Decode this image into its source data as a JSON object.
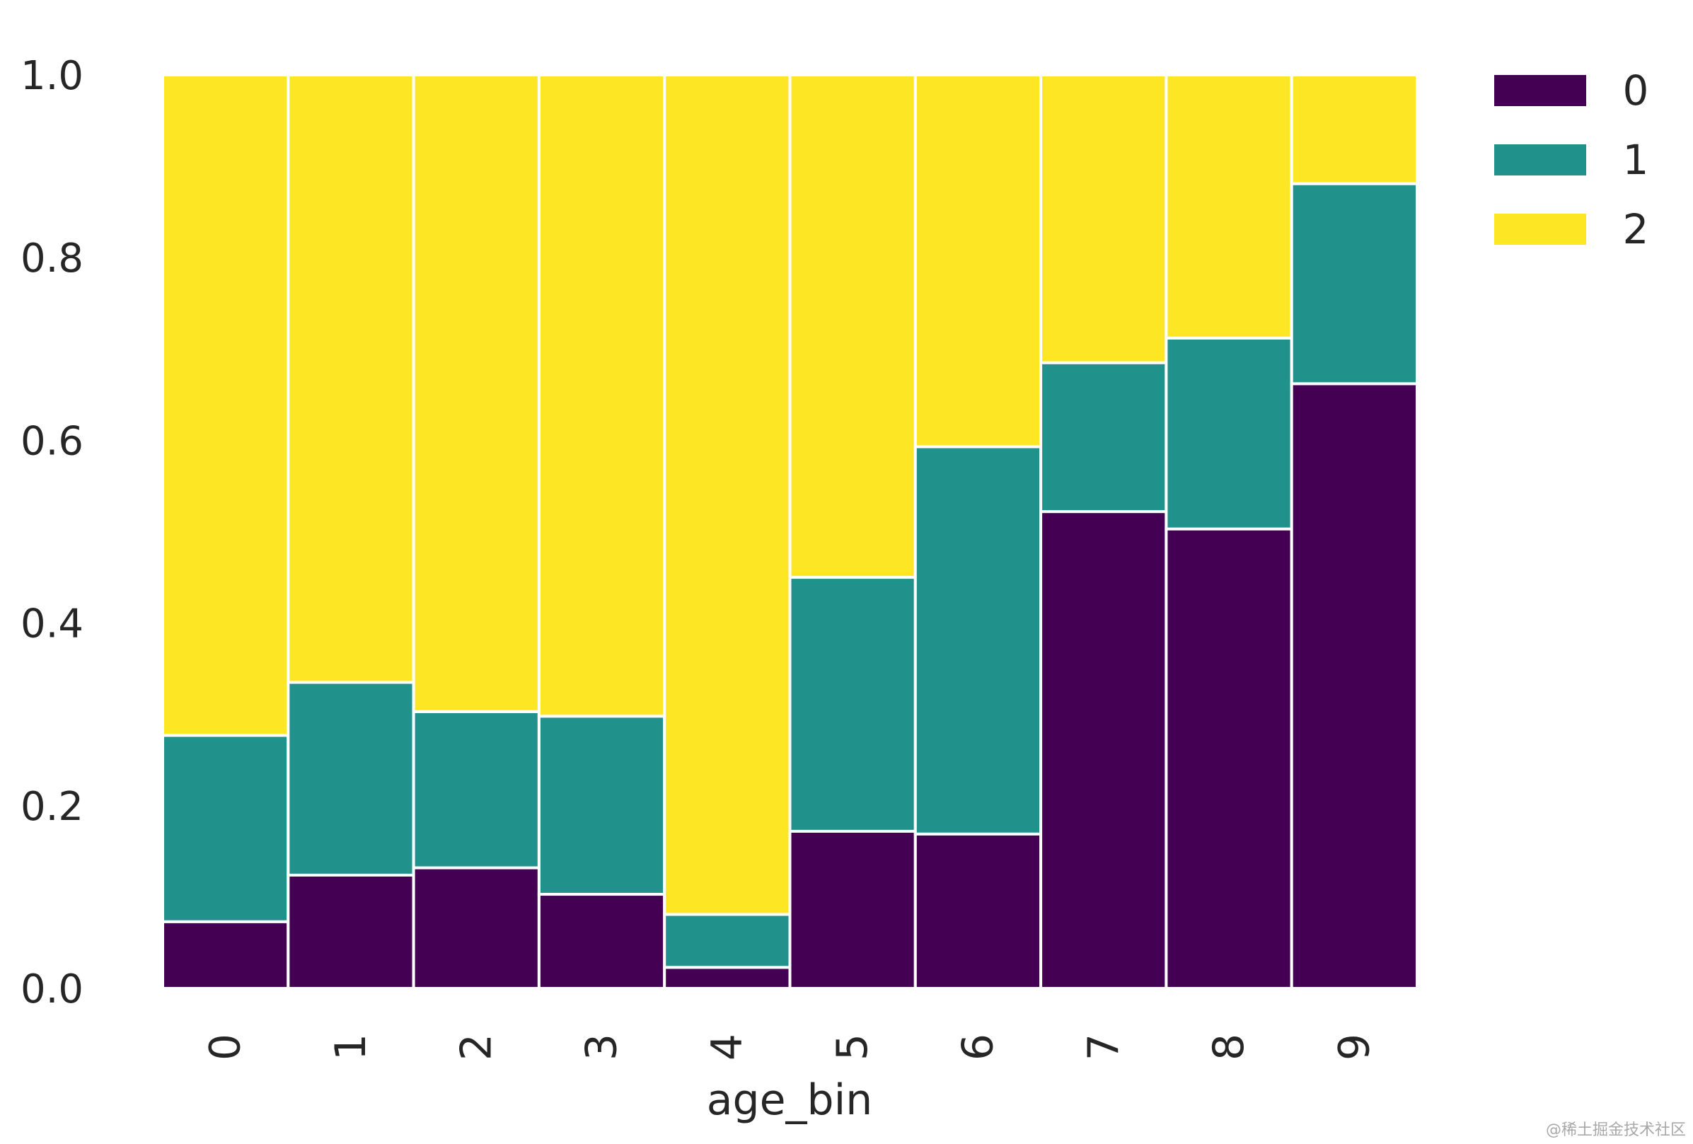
{
  "chart_data": {
    "type": "bar",
    "stacked": true,
    "normalized": true,
    "categories": [
      "0",
      "1",
      "2",
      "3",
      "4",
      "5",
      "6",
      "7",
      "8",
      "9"
    ],
    "series": [
      {
        "name": "0",
        "color": "#440154",
        "values": [
          0.073,
          0.124,
          0.132,
          0.103,
          0.023,
          0.172,
          0.169,
          0.522,
          0.503,
          0.662
        ]
      },
      {
        "name": "1",
        "color": "#21918c",
        "values": [
          0.204,
          0.211,
          0.171,
          0.195,
          0.058,
          0.278,
          0.424,
          0.163,
          0.209,
          0.219
        ]
      },
      {
        "name": "2",
        "color": "#fde725",
        "values": [
          0.723,
          0.665,
          0.697,
          0.702,
          0.919,
          0.55,
          0.407,
          0.315,
          0.288,
          0.119
        ]
      }
    ],
    "yticks": [
      "0.0",
      "0.2",
      "0.4",
      "0.6",
      "0.8",
      "1.0"
    ],
    "ylim": [
      0,
      1
    ],
    "title": "",
    "xlabel": "age_bin",
    "ylabel": "",
    "grid": false,
    "legend_position": "top-right outside"
  },
  "watermark": "@稀土掘金技术社区"
}
